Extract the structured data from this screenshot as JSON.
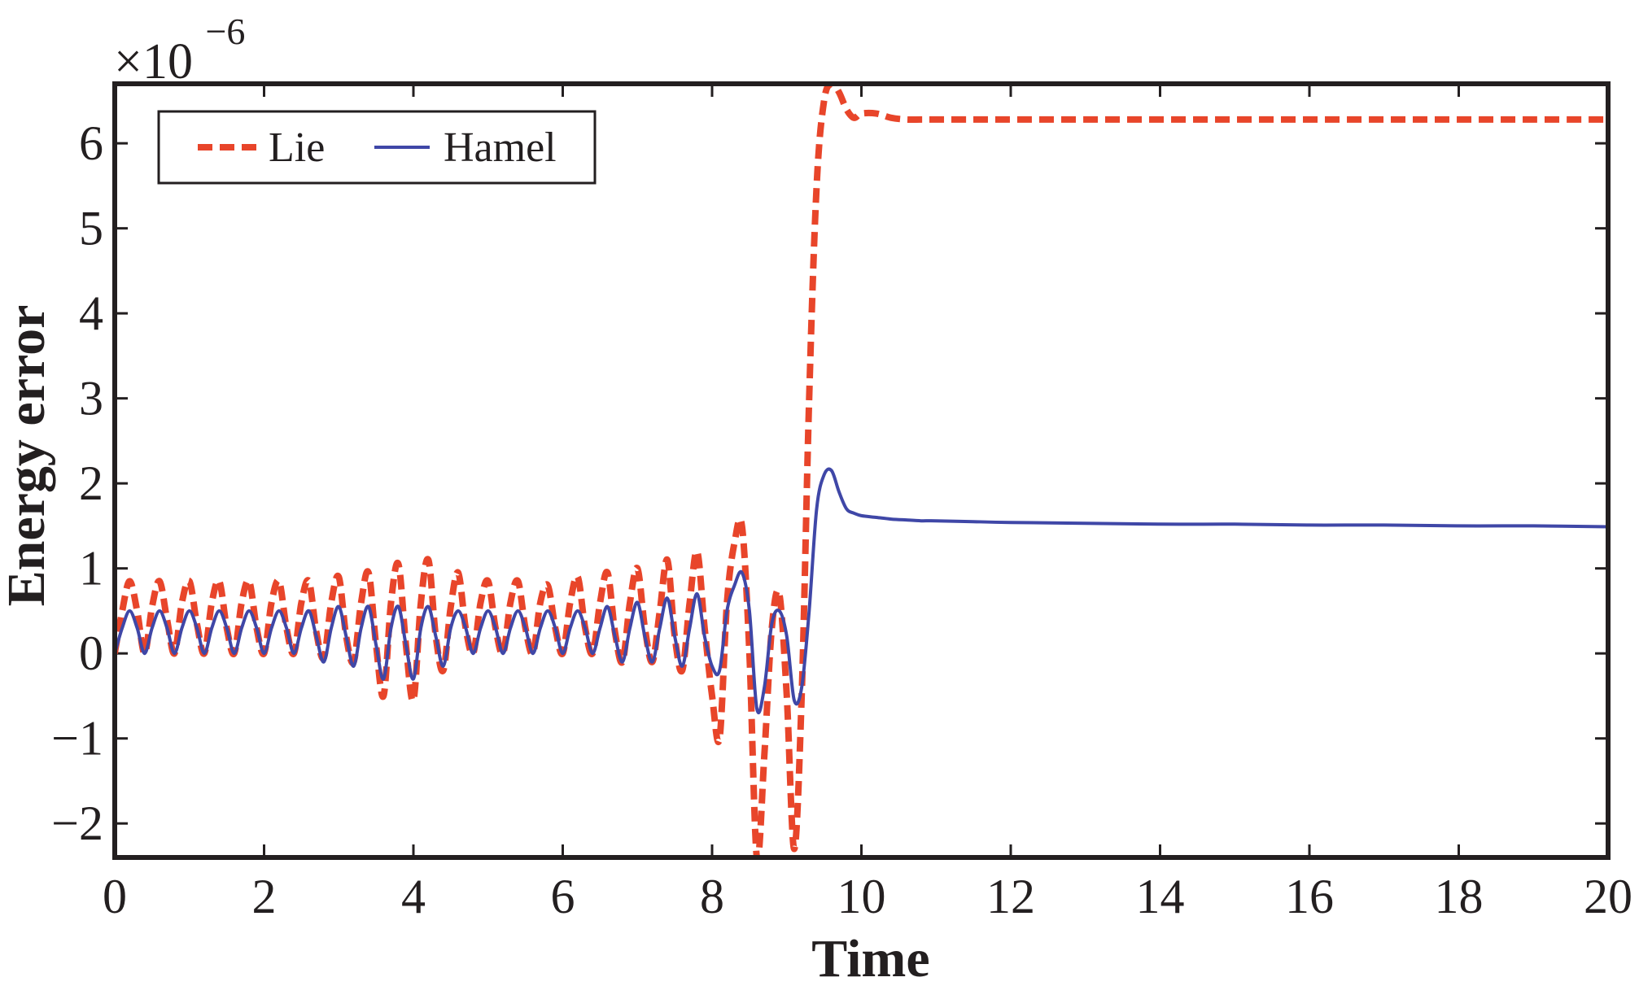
{
  "chart_data": {
    "type": "line",
    "xlabel": "Time",
    "ylabel": "Energy error",
    "xlim": [
      0,
      20
    ],
    "ylim": [
      -2.4,
      6.7
    ],
    "x_ticks": [
      "0",
      "2",
      "4",
      "6",
      "8",
      "10",
      "12",
      "14",
      "16",
      "18",
      "20"
    ],
    "y_ticks": [
      "−2",
      "−1",
      "0",
      "1",
      "2",
      "3",
      "4",
      "5",
      "6"
    ],
    "y_multiplier": {
      "base": "×10",
      "exponent": "−6"
    },
    "grid": false,
    "legend": {
      "placement": "top-left",
      "orientation": "horizontal"
    },
    "series": [
      {
        "name": "Lie",
        "color": "#e8452a",
        "style": "dashed",
        "x": [
          0,
          0.1,
          0.2,
          0.3,
          0.4,
          0.5,
          0.6,
          0.7,
          0.8,
          0.9,
          1.0,
          1.1,
          1.2,
          1.3,
          1.4,
          1.5,
          1.6,
          1.7,
          1.8,
          1.9,
          2.0,
          2.1,
          2.2,
          2.3,
          2.4,
          2.5,
          2.6,
          2.7,
          2.8,
          2.9,
          3.0,
          3.1,
          3.2,
          3.3,
          3.4,
          3.5,
          3.6,
          3.7,
          3.8,
          3.9,
          4.0,
          4.1,
          4.2,
          4.3,
          4.4,
          4.5,
          4.6,
          4.7,
          4.8,
          4.9,
          5.0,
          5.1,
          5.2,
          5.3,
          5.4,
          5.5,
          5.6,
          5.7,
          5.8,
          5.9,
          6.0,
          6.1,
          6.2,
          6.3,
          6.4,
          6.5,
          6.6,
          6.7,
          6.8,
          6.9,
          7.0,
          7.1,
          7.2,
          7.3,
          7.4,
          7.5,
          7.6,
          7.7,
          7.8,
          7.9,
          8.0,
          8.1,
          8.2,
          8.3,
          8.4,
          8.5,
          8.6,
          8.7,
          8.8,
          8.9,
          9.0,
          9.1,
          9.2,
          9.3,
          9.4,
          9.5,
          9.6,
          9.7,
          9.8,
          9.9,
          10.0,
          10.2,
          10.4,
          10.6,
          10.8,
          11.0,
          11.5,
          12.0,
          13.0,
          14.0,
          15.0,
          16.0,
          17.0,
          18.0,
          19.0,
          20.0
        ],
        "y": [
          0.0,
          0.5,
          0.85,
          0.5,
          0.0,
          0.55,
          0.85,
          0.4,
          0.0,
          0.6,
          0.85,
          0.35,
          0.0,
          0.6,
          0.85,
          0.3,
          0.0,
          0.6,
          0.85,
          0.3,
          0.0,
          0.6,
          0.85,
          0.3,
          0.0,
          0.6,
          0.85,
          0.25,
          -0.05,
          0.6,
          0.9,
          0.2,
          -0.1,
          0.6,
          0.95,
          0.1,
          -0.5,
          0.6,
          1.05,
          0.1,
          -0.55,
          0.6,
          1.1,
          0.2,
          -0.2,
          0.55,
          0.95,
          0.3,
          0.0,
          0.6,
          0.85,
          0.3,
          0.0,
          0.6,
          0.85,
          0.3,
          0.0,
          0.6,
          0.8,
          0.3,
          0.0,
          0.6,
          0.9,
          0.3,
          0.0,
          0.6,
          0.95,
          0.25,
          -0.1,
          0.6,
          1.0,
          0.3,
          -0.1,
          0.5,
          1.1,
          0.2,
          -0.2,
          0.6,
          1.2,
          0.3,
          -0.5,
          -1.0,
          0.6,
          1.3,
          1.5,
          0.0,
          -2.4,
          -1.2,
          0.3,
          0.7,
          -0.5,
          -2.3,
          -0.5,
          3.0,
          5.5,
          6.5,
          6.7,
          6.6,
          6.4,
          6.3,
          6.35,
          6.35,
          6.3,
          6.28,
          6.28,
          6.28,
          6.28,
          6.28,
          6.28,
          6.28,
          6.28,
          6.28,
          6.28,
          6.28,
          6.28,
          6.28
        ]
      },
      {
        "name": "Hamel",
        "color": "#3f47a7",
        "style": "solid",
        "x": [
          0,
          0.1,
          0.2,
          0.3,
          0.4,
          0.5,
          0.6,
          0.7,
          0.8,
          0.9,
          1.0,
          1.1,
          1.2,
          1.3,
          1.4,
          1.5,
          1.6,
          1.7,
          1.8,
          1.9,
          2.0,
          2.1,
          2.2,
          2.3,
          2.4,
          2.5,
          2.6,
          2.7,
          2.8,
          2.9,
          3.0,
          3.1,
          3.2,
          3.3,
          3.4,
          3.5,
          3.6,
          3.7,
          3.8,
          3.9,
          4.0,
          4.1,
          4.2,
          4.3,
          4.4,
          4.5,
          4.6,
          4.7,
          4.8,
          4.9,
          5.0,
          5.1,
          5.2,
          5.3,
          5.4,
          5.5,
          5.6,
          5.7,
          5.8,
          5.9,
          6.0,
          6.1,
          6.2,
          6.3,
          6.4,
          6.5,
          6.6,
          6.7,
          6.8,
          6.9,
          7.0,
          7.1,
          7.2,
          7.3,
          7.4,
          7.5,
          7.6,
          7.7,
          7.8,
          7.9,
          8.0,
          8.1,
          8.2,
          8.3,
          8.4,
          8.5,
          8.6,
          8.7,
          8.8,
          8.9,
          9.0,
          9.1,
          9.2,
          9.3,
          9.4,
          9.5,
          9.6,
          9.7,
          9.8,
          9.9,
          10.0,
          10.2,
          10.4,
          10.6,
          10.8,
          11.0,
          11.5,
          12.0,
          13.0,
          14.0,
          15.0,
          16.0,
          17.0,
          18.0,
          19.0,
          20.0
        ],
        "y": [
          0.0,
          0.3,
          0.5,
          0.3,
          0.0,
          0.3,
          0.5,
          0.3,
          0.0,
          0.3,
          0.5,
          0.3,
          0.0,
          0.3,
          0.5,
          0.3,
          0.0,
          0.3,
          0.5,
          0.3,
          0.0,
          0.3,
          0.5,
          0.3,
          0.0,
          0.3,
          0.5,
          0.2,
          -0.1,
          0.3,
          0.55,
          0.2,
          -0.15,
          0.3,
          0.55,
          0.1,
          -0.3,
          0.3,
          0.55,
          0.1,
          -0.3,
          0.3,
          0.55,
          0.2,
          -0.15,
          0.3,
          0.5,
          0.3,
          0.0,
          0.3,
          0.5,
          0.3,
          0.0,
          0.3,
          0.5,
          0.3,
          0.0,
          0.3,
          0.5,
          0.3,
          0.0,
          0.3,
          0.5,
          0.3,
          0.0,
          0.3,
          0.55,
          0.2,
          -0.1,
          0.3,
          0.6,
          0.2,
          -0.1,
          0.3,
          0.65,
          0.2,
          -0.15,
          0.3,
          0.7,
          0.2,
          -0.15,
          -0.2,
          0.5,
          0.8,
          0.95,
          0.5,
          -0.65,
          -0.4,
          0.35,
          0.5,
          0.2,
          -0.55,
          -0.4,
          0.5,
          1.7,
          2.1,
          2.15,
          1.9,
          1.7,
          1.65,
          1.62,
          1.6,
          1.58,
          1.57,
          1.56,
          1.56,
          1.55,
          1.54,
          1.53,
          1.52,
          1.52,
          1.51,
          1.51,
          1.5,
          1.5,
          1.49
        ]
      }
    ]
  }
}
